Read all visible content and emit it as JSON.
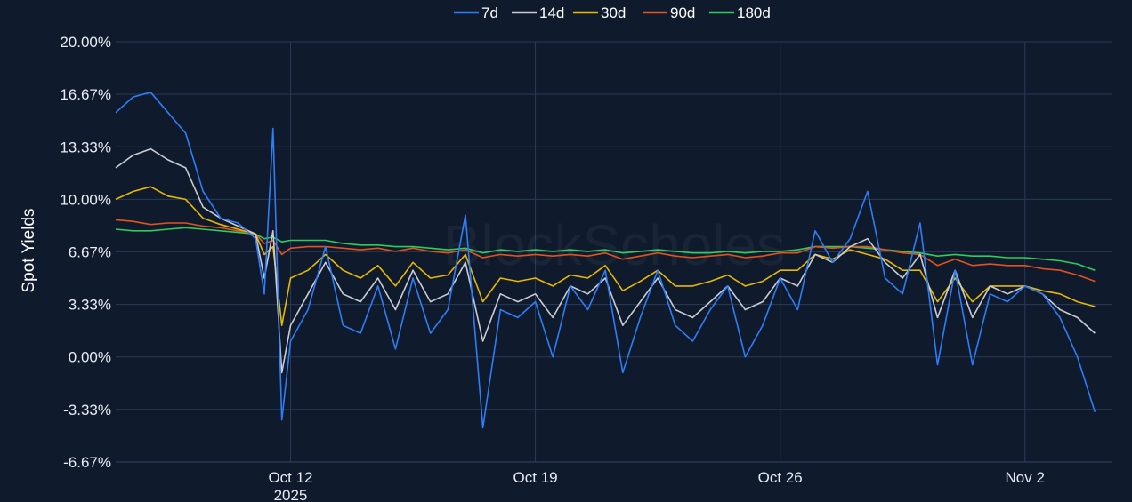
{
  "chart_data": {
    "type": "line",
    "title": "",
    "xlabel": "",
    "ylabel": "Spot Yields",
    "watermark": "BlockScholes",
    "x_range": [
      "2025-10-07",
      "2025-11-04"
    ],
    "ylim": [
      -6.67,
      20.0
    ],
    "y_ticks": [
      {
        "value": 20.0,
        "label": "20.00%"
      },
      {
        "value": 16.67,
        "label": "16.67%"
      },
      {
        "value": 13.33,
        "label": "13.33%"
      },
      {
        "value": 10.0,
        "label": "10.00%"
      },
      {
        "value": 6.67,
        "label": "6.67%"
      },
      {
        "value": 3.33,
        "label": "3.33%"
      },
      {
        "value": 0.0,
        "label": "0.00%"
      },
      {
        "value": -3.33,
        "label": "-3.33%"
      },
      {
        "value": -6.67,
        "label": "-6.67%"
      }
    ],
    "x_ticks": [
      {
        "date": "2025-10-12",
        "label": "Oct 12",
        "sublabel": "2025"
      },
      {
        "date": "2025-10-19",
        "label": "Oct 19",
        "sublabel": ""
      },
      {
        "date": "2025-10-26",
        "label": "Oct 26",
        "sublabel": ""
      },
      {
        "date": "2025-11-02",
        "label": "Nov 2",
        "sublabel": ""
      }
    ],
    "grid": true,
    "legend_position": "top-center",
    "series": [
      {
        "name": "7d",
        "color": "#2f7df6",
        "x": [
          "2025-10-07",
          "2025-10-07T12:00",
          "2025-10-08",
          "2025-10-08T12:00",
          "2025-10-09",
          "2025-10-09T12:00",
          "2025-10-10",
          "2025-10-10T12:00",
          "2025-10-11",
          "2025-10-11T06:00",
          "2025-10-11T12:00",
          "2025-10-11T18:00",
          "2025-10-12",
          "2025-10-12T12:00",
          "2025-10-13",
          "2025-10-13T12:00",
          "2025-10-14",
          "2025-10-14T12:00",
          "2025-10-15",
          "2025-10-15T12:00",
          "2025-10-16",
          "2025-10-16T12:00",
          "2025-10-17",
          "2025-10-17T12:00",
          "2025-10-18",
          "2025-10-18T12:00",
          "2025-10-19",
          "2025-10-19T12:00",
          "2025-10-20",
          "2025-10-20T12:00",
          "2025-10-21",
          "2025-10-21T12:00",
          "2025-10-22",
          "2025-10-22T12:00",
          "2025-10-23",
          "2025-10-23T12:00",
          "2025-10-24",
          "2025-10-24T12:00",
          "2025-10-25",
          "2025-10-25T12:00",
          "2025-10-26",
          "2025-10-26T12:00",
          "2025-10-27",
          "2025-10-27T12:00",
          "2025-10-28",
          "2025-10-28T12:00",
          "2025-10-29",
          "2025-10-29T12:00",
          "2025-10-30",
          "2025-10-30T12:00",
          "2025-10-31",
          "2025-10-31T12:00",
          "2025-11-01",
          "2025-11-01T12:00",
          "2025-11-02",
          "2025-11-02T12:00",
          "2025-11-03",
          "2025-11-03T12:00",
          "2025-11-04"
        ],
        "values": [
          15.5,
          16.5,
          16.8,
          15.5,
          14.2,
          10.5,
          8.8,
          8.5,
          7.5,
          4.0,
          14.5,
          -4.0,
          1.0,
          3.0,
          7.0,
          2.0,
          1.5,
          4.5,
          0.5,
          5.0,
          1.5,
          3.0,
          9.0,
          -4.5,
          3.0,
          2.5,
          3.5,
          0.0,
          4.5,
          3.0,
          5.5,
          -1.0,
          2.5,
          5.5,
          2.0,
          1.0,
          3.0,
          4.5,
          0.0,
          2.0,
          5.0,
          3.0,
          8.0,
          6.0,
          7.5,
          10.5,
          5.0,
          4.0,
          8.5,
          -0.5,
          5.5,
          -0.5,
          4.0,
          3.5,
          4.5,
          4.0,
          2.5,
          0.0,
          -3.5
        ]
      },
      {
        "name": "14d",
        "color": "#c9ccd2",
        "x": [
          "2025-10-07",
          "2025-10-07T12:00",
          "2025-10-08",
          "2025-10-08T12:00",
          "2025-10-09",
          "2025-10-09T12:00",
          "2025-10-10",
          "2025-10-10T12:00",
          "2025-10-11",
          "2025-10-11T06:00",
          "2025-10-11T12:00",
          "2025-10-11T18:00",
          "2025-10-12",
          "2025-10-12T12:00",
          "2025-10-13",
          "2025-10-13T12:00",
          "2025-10-14",
          "2025-10-14T12:00",
          "2025-10-15",
          "2025-10-15T12:00",
          "2025-10-16",
          "2025-10-16T12:00",
          "2025-10-17",
          "2025-10-17T12:00",
          "2025-10-18",
          "2025-10-18T12:00",
          "2025-10-19",
          "2025-10-19T12:00",
          "2025-10-20",
          "2025-10-20T12:00",
          "2025-10-21",
          "2025-10-21T12:00",
          "2025-10-22",
          "2025-10-22T12:00",
          "2025-10-23",
          "2025-10-23T12:00",
          "2025-10-24",
          "2025-10-24T12:00",
          "2025-10-25",
          "2025-10-25T12:00",
          "2025-10-26",
          "2025-10-26T12:00",
          "2025-10-27",
          "2025-10-27T12:00",
          "2025-10-28",
          "2025-10-28T12:00",
          "2025-10-29",
          "2025-10-29T12:00",
          "2025-10-30",
          "2025-10-30T12:00",
          "2025-10-31",
          "2025-10-31T12:00",
          "2025-11-01",
          "2025-11-01T12:00",
          "2025-11-02",
          "2025-11-02T12:00",
          "2025-11-03",
          "2025-11-03T12:00",
          "2025-11-04"
        ],
        "values": [
          12.0,
          12.8,
          13.2,
          12.5,
          12.0,
          9.5,
          8.8,
          8.3,
          7.8,
          5.0,
          8.0,
          -1.0,
          2.0,
          4.0,
          6.0,
          4.0,
          3.5,
          5.0,
          3.0,
          5.5,
          3.5,
          4.0,
          6.0,
          1.0,
          4.0,
          3.5,
          4.0,
          2.5,
          4.5,
          4.0,
          5.0,
          2.0,
          3.5,
          5.0,
          3.0,
          2.5,
          3.5,
          4.5,
          3.0,
          3.5,
          5.0,
          4.5,
          6.5,
          6.0,
          7.0,
          7.5,
          6.0,
          5.0,
          6.5,
          2.5,
          5.5,
          2.5,
          4.5,
          4.0,
          4.5,
          4.0,
          3.0,
          2.5,
          1.5
        ]
      },
      {
        "name": "30d",
        "color": "#e8b800",
        "x": [
          "2025-10-07",
          "2025-10-07T12:00",
          "2025-10-08",
          "2025-10-08T12:00",
          "2025-10-09",
          "2025-10-09T12:00",
          "2025-10-10",
          "2025-10-10T12:00",
          "2025-10-11",
          "2025-10-11T06:00",
          "2025-10-11T12:00",
          "2025-10-11T18:00",
          "2025-10-12",
          "2025-10-12T12:00",
          "2025-10-13",
          "2025-10-13T12:00",
          "2025-10-14",
          "2025-10-14T12:00",
          "2025-10-15",
          "2025-10-15T12:00",
          "2025-10-16",
          "2025-10-16T12:00",
          "2025-10-17",
          "2025-10-17T12:00",
          "2025-10-18",
          "2025-10-18T12:00",
          "2025-10-19",
          "2025-10-19T12:00",
          "2025-10-20",
          "2025-10-20T12:00",
          "2025-10-21",
          "2025-10-21T12:00",
          "2025-10-22",
          "2025-10-22T12:00",
          "2025-10-23",
          "2025-10-23T12:00",
          "2025-10-24",
          "2025-10-24T12:00",
          "2025-10-25",
          "2025-10-25T12:00",
          "2025-10-26",
          "2025-10-26T12:00",
          "2025-10-27",
          "2025-10-27T12:00",
          "2025-10-28",
          "2025-10-28T12:00",
          "2025-10-29",
          "2025-10-29T12:00",
          "2025-10-30",
          "2025-10-30T12:00",
          "2025-10-31",
          "2025-10-31T12:00",
          "2025-11-01",
          "2025-11-01T12:00",
          "2025-11-02",
          "2025-11-02T12:00",
          "2025-11-03",
          "2025-11-03T12:00",
          "2025-11-04"
        ],
        "values": [
          10.0,
          10.5,
          10.8,
          10.2,
          10.0,
          8.8,
          8.4,
          8.1,
          7.8,
          6.5,
          7.0,
          2.0,
          5.0,
          5.5,
          6.5,
          5.5,
          5.0,
          5.8,
          4.5,
          6.0,
          5.0,
          5.2,
          6.5,
          3.5,
          5.0,
          4.8,
          5.0,
          4.5,
          5.2,
          5.0,
          5.8,
          4.2,
          4.8,
          5.5,
          4.5,
          4.5,
          4.8,
          5.2,
          4.5,
          4.8,
          5.5,
          5.5,
          6.5,
          6.2,
          6.8,
          6.5,
          6.2,
          5.5,
          5.5,
          3.5,
          5.0,
          3.5,
          4.5,
          4.5,
          4.5,
          4.2,
          4.0,
          3.5,
          3.2
        ]
      },
      {
        "name": "90d",
        "color": "#e0531f",
        "x": [
          "2025-10-07",
          "2025-10-07T12:00",
          "2025-10-08",
          "2025-10-08T12:00",
          "2025-10-09",
          "2025-10-09T12:00",
          "2025-10-10",
          "2025-10-10T12:00",
          "2025-10-11",
          "2025-10-11T06:00",
          "2025-10-11T12:00",
          "2025-10-11T18:00",
          "2025-10-12",
          "2025-10-12T12:00",
          "2025-10-13",
          "2025-10-13T12:00",
          "2025-10-14",
          "2025-10-14T12:00",
          "2025-10-15",
          "2025-10-15T12:00",
          "2025-10-16",
          "2025-10-16T12:00",
          "2025-10-17",
          "2025-10-17T12:00",
          "2025-10-18",
          "2025-10-18T12:00",
          "2025-10-19",
          "2025-10-19T12:00",
          "2025-10-20",
          "2025-10-20T12:00",
          "2025-10-21",
          "2025-10-21T12:00",
          "2025-10-22",
          "2025-10-22T12:00",
          "2025-10-23",
          "2025-10-23T12:00",
          "2025-10-24",
          "2025-10-24T12:00",
          "2025-10-25",
          "2025-10-25T12:00",
          "2025-10-26",
          "2025-10-26T12:00",
          "2025-10-27",
          "2025-10-27T12:00",
          "2025-10-28",
          "2025-10-28T12:00",
          "2025-10-29",
          "2025-10-29T12:00",
          "2025-10-30",
          "2025-10-30T12:00",
          "2025-10-31",
          "2025-10-31T12:00",
          "2025-11-01",
          "2025-11-01T12:00",
          "2025-11-02",
          "2025-11-02T12:00",
          "2025-11-03",
          "2025-11-03T12:00",
          "2025-11-04"
        ],
        "values": [
          8.7,
          8.6,
          8.4,
          8.5,
          8.5,
          8.3,
          8.2,
          8.0,
          7.8,
          7.2,
          7.4,
          6.5,
          6.9,
          7.0,
          7.0,
          6.9,
          6.8,
          6.9,
          6.7,
          6.9,
          6.7,
          6.6,
          6.8,
          6.3,
          6.5,
          6.4,
          6.5,
          6.4,
          6.5,
          6.4,
          6.6,
          6.2,
          6.4,
          6.6,
          6.4,
          6.3,
          6.4,
          6.5,
          6.3,
          6.4,
          6.6,
          6.6,
          7.0,
          6.9,
          7.0,
          7.0,
          6.8,
          6.6,
          6.5,
          5.8,
          6.2,
          5.8,
          5.9,
          5.8,
          5.8,
          5.6,
          5.5,
          5.2,
          4.8
        ]
      },
      {
        "name": "180d",
        "color": "#2ecc5a",
        "x": [
          "2025-10-07",
          "2025-10-07T12:00",
          "2025-10-08",
          "2025-10-08T12:00",
          "2025-10-09",
          "2025-10-09T12:00",
          "2025-10-10",
          "2025-10-10T12:00",
          "2025-10-11",
          "2025-10-11T06:00",
          "2025-10-11T12:00",
          "2025-10-11T18:00",
          "2025-10-12",
          "2025-10-12T12:00",
          "2025-10-13",
          "2025-10-13T12:00",
          "2025-10-14",
          "2025-10-14T12:00",
          "2025-10-15",
          "2025-10-15T12:00",
          "2025-10-16",
          "2025-10-16T12:00",
          "2025-10-17",
          "2025-10-17T12:00",
          "2025-10-18",
          "2025-10-18T12:00",
          "2025-10-19",
          "2025-10-19T12:00",
          "2025-10-20",
          "2025-10-20T12:00",
          "2025-10-21",
          "2025-10-21T12:00",
          "2025-10-22",
          "2025-10-22T12:00",
          "2025-10-23",
          "2025-10-23T12:00",
          "2025-10-24",
          "2025-10-24T12:00",
          "2025-10-25",
          "2025-10-25T12:00",
          "2025-10-26",
          "2025-10-26T12:00",
          "2025-10-27",
          "2025-10-27T12:00",
          "2025-10-28",
          "2025-10-28T12:00",
          "2025-10-29",
          "2025-10-29T12:00",
          "2025-10-30",
          "2025-10-30T12:00",
          "2025-10-31",
          "2025-10-31T12:00",
          "2025-11-01",
          "2025-11-01T12:00",
          "2025-11-02",
          "2025-11-02T12:00",
          "2025-11-03",
          "2025-11-03T12:00",
          "2025-11-04"
        ],
        "values": [
          8.1,
          8.0,
          8.0,
          8.1,
          8.2,
          8.1,
          8.0,
          7.9,
          7.8,
          7.5,
          7.6,
          7.3,
          7.4,
          7.4,
          7.4,
          7.2,
          7.1,
          7.1,
          7.0,
          7.0,
          6.9,
          6.8,
          6.9,
          6.6,
          6.8,
          6.7,
          6.8,
          6.7,
          6.8,
          6.7,
          6.8,
          6.6,
          6.7,
          6.8,
          6.7,
          6.6,
          6.6,
          6.7,
          6.6,
          6.7,
          6.7,
          6.8,
          7.0,
          7.0,
          7.0,
          6.9,
          6.8,
          6.7,
          6.6,
          6.4,
          6.5,
          6.4,
          6.4,
          6.3,
          6.3,
          6.2,
          6.1,
          5.9,
          5.5
        ]
      }
    ]
  }
}
